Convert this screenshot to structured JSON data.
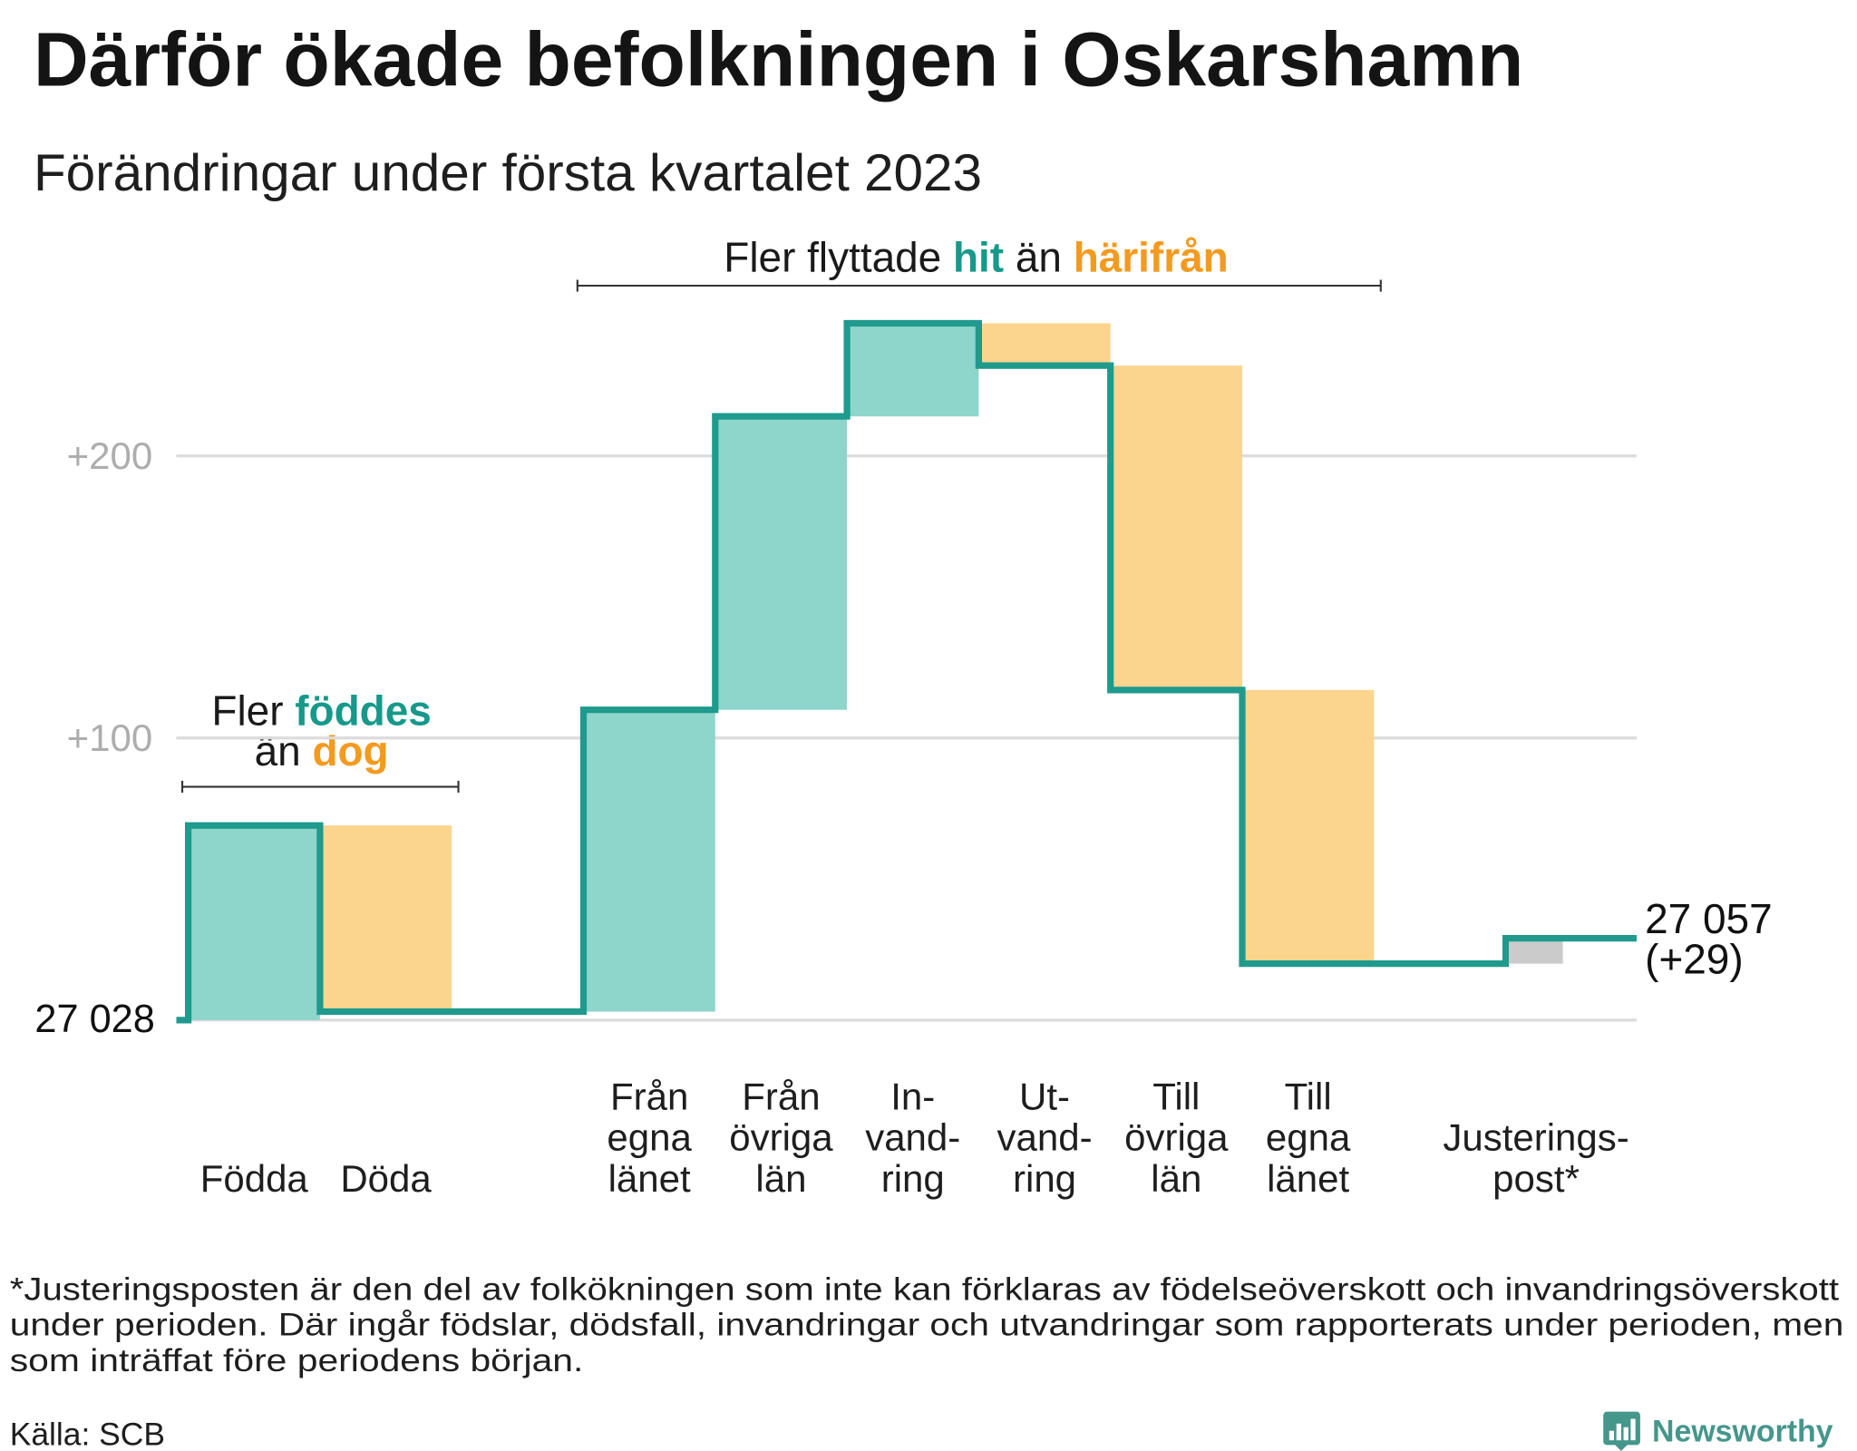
{
  "annotations": {
    "migration": {
      "prefix": "Fler flyttade",
      "in_word": "hit",
      "middle": "än",
      "out_word": "härifrån"
    },
    "births": {
      "line1_prefix": "Fler",
      "line1_word": "föddes",
      "line2_prefix": "än",
      "line2_word": "dog"
    }
  },
  "colors": {
    "step_line": "#1f9a8c",
    "highlight_teal": "#16998a",
    "highlight_orange": "#f39a1f",
    "brand": "#45968b"
  },
  "chart_data": {
    "type": "bar",
    "waterfall": true,
    "title": "Därför ökade befolkningen i Oskarshamn",
    "subtitle": "Förändringar under första kvartalet 2023",
    "start_label": "27 028",
    "end_label": "27 057",
    "end_change_label": "(+29)",
    "categories": [
      [
        "Födda"
      ],
      [
        "Döda"
      ],
      [
        "Från",
        "egna",
        "länet"
      ],
      [
        "Från",
        "övriga",
        "län"
      ],
      [
        "In-",
        "vand-",
        "ring"
      ],
      [
        "Ut-",
        "vand-",
        "ring"
      ],
      [
        "Till",
        "övriga",
        "län"
      ],
      [
        "Till",
        "egna",
        "länet"
      ],
      [
        "Justerings-",
        "post*"
      ]
    ],
    "values": [
      69,
      -66,
      107,
      104,
      33,
      -15,
      -115,
      -97,
      9
    ],
    "bar_colors": [
      "#8ed5cc",
      "#fbd48e",
      "#8ed5cc",
      "#8ed5cc",
      "#8ed5cc",
      "#fbd48e",
      "#fbd48e",
      "#fbd48e",
      "#cbcbcb"
    ],
    "y_ticks": [
      {
        "value": 100,
        "label": "+100"
      },
      {
        "value": 200,
        "label": "+200"
      }
    ],
    "ylim": [
      0,
      260
    ],
    "grid": true
  },
  "footnote": [
    "*Justeringsposten är den del av folkökningen som inte kan förklaras av födelseöverskott och invandringsöverskott",
    "under perioden. Där ingår födslar, dödsfall, invandringar och utvandringar som rapporterats under perioden, men",
    "som inträffat före periodens början."
  ],
  "source": "Källa: SCB",
  "brand": "Newsworthy"
}
